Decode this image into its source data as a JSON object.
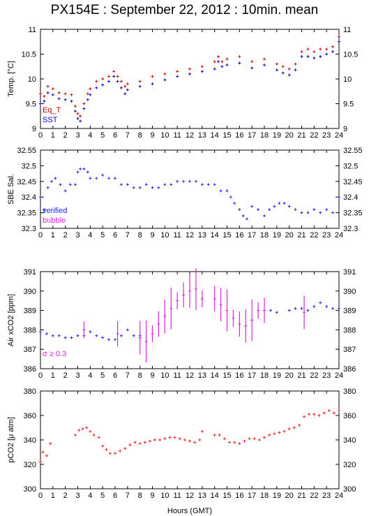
{
  "title": "PX154E : September 22, 2012 : 10min. mean",
  "xlabel": "Hours (GMT)",
  "colors": {
    "eq_t": "#cc0000",
    "sst": "#0000cc",
    "verified": "#2222ee",
    "bubble": "#dd22dd",
    "pco2": "#ee2222"
  },
  "legend": {
    "temp": [
      "Eq_T",
      "SST"
    ],
    "sal": [
      "verified",
      "bubble"
    ],
    "air": "σ ≥ 0.3"
  },
  "chart_data": [
    {
      "type": "scatter",
      "panel": "temperature",
      "ylabel": "Temp. [°C]",
      "xlim": [
        0,
        24
      ],
      "ylim": [
        9,
        11
      ],
      "x_ticks": [
        0,
        1,
        2,
        3,
        4,
        5,
        6,
        7,
        8,
        9,
        10,
        11,
        12,
        13,
        14,
        15,
        16,
        17,
        18,
        19,
        20,
        21,
        22,
        23,
        24
      ],
      "y_ticks": [
        "9",
        "9.5",
        "10",
        "10.5",
        "11"
      ],
      "series": [
        {
          "name": "Eq_T",
          "x": [
            0,
            0.3,
            0.6,
            1,
            1.5,
            2,
            2.5,
            2.8,
            3,
            3.2,
            3.5,
            3.8,
            4,
            4.5,
            5,
            5.5,
            5.9,
            6.2,
            6.5,
            6.8,
            7,
            8,
            9,
            10,
            11,
            12,
            13,
            14,
            14.3,
            14.6,
            15,
            16,
            17,
            18,
            19,
            19.5,
            20,
            20.5,
            21,
            21.5,
            22,
            22.5,
            23,
            23.5,
            24
          ],
          "y": [
            9.7,
            9.65,
            9.85,
            9.8,
            9.72,
            9.7,
            9.68,
            9.45,
            9.3,
            9.25,
            9.5,
            9.7,
            9.8,
            9.95,
            10.0,
            10.05,
            10.15,
            10.05,
            9.95,
            9.85,
            9.9,
            9.95,
            10.05,
            10.1,
            10.15,
            10.2,
            10.25,
            10.35,
            10.45,
            10.35,
            10.4,
            10.45,
            10.35,
            10.4,
            10.3,
            10.25,
            10.2,
            10.3,
            10.55,
            10.6,
            10.55,
            10.6,
            10.6,
            10.65,
            10.85
          ]
        },
        {
          "name": "SST",
          "x": [
            0,
            0.3,
            0.6,
            1,
            1.5,
            2,
            2.5,
            2.8,
            3,
            3.2,
            3.5,
            3.8,
            4,
            4.5,
            5,
            5.5,
            5.9,
            6.2,
            6.5,
            6.8,
            7,
            8,
            9,
            10,
            11,
            12,
            13,
            14,
            14.3,
            14.6,
            15,
            16,
            17,
            18,
            19,
            19.5,
            20,
            20.5,
            21,
            21.5,
            22,
            22.5,
            23,
            23.5,
            24
          ],
          "y": [
            9.5,
            9.55,
            9.72,
            9.68,
            9.6,
            9.58,
            9.55,
            9.35,
            9.2,
            9.15,
            9.4,
            9.58,
            9.68,
            9.82,
            9.88,
            9.95,
            10.05,
            9.95,
            9.82,
            9.7,
            9.78,
            9.85,
            9.9,
            9.98,
            10.05,
            10.1,
            10.15,
            10.2,
            10.35,
            10.25,
            10.28,
            10.32,
            10.22,
            10.28,
            10.18,
            10.12,
            10.08,
            10.18,
            10.45,
            10.45,
            10.42,
            10.45,
            10.5,
            10.55,
            10.75
          ]
        }
      ]
    },
    {
      "type": "scatter",
      "panel": "salinity",
      "ylabel": "SBE Sal.",
      "xlim": [
        0,
        24
      ],
      "ylim": [
        32.3,
        32.55
      ],
      "x_ticks": [
        0,
        1,
        2,
        3,
        4,
        5,
        6,
        7,
        8,
        9,
        10,
        11,
        12,
        13,
        14,
        15,
        16,
        17,
        18,
        19,
        20,
        21,
        22,
        23,
        24
      ],
      "y_ticks": [
        "32.3",
        "32.35",
        "32.4",
        "32.45",
        "32.5",
        "32.55"
      ],
      "series": [
        {
          "name": "verified",
          "x": [
            0,
            0.3,
            0.6,
            0.9,
            1.2,
            1.6,
            2,
            2.4,
            2.8,
            3,
            3.2,
            3.5,
            3.8,
            4,
            4.5,
            5,
            5.5,
            6,
            6.5,
            7,
            7.5,
            8,
            8.5,
            9,
            9.5,
            10,
            10.5,
            11,
            11.5,
            12,
            12.5,
            13,
            13.5,
            14,
            14.5,
            15,
            15.3,
            15.6,
            16,
            16.3,
            16.6,
            17,
            17.5,
            18,
            18.4,
            18.8,
            19.2,
            19.6,
            20,
            20.5,
            21,
            21.5,
            22,
            22.5,
            23,
            23.5,
            24
          ],
          "y": [
            32.4,
            32.36,
            32.43,
            32.45,
            32.46,
            32.44,
            32.42,
            32.44,
            32.44,
            32.48,
            32.49,
            32.49,
            32.48,
            32.46,
            32.46,
            32.47,
            32.46,
            32.46,
            32.44,
            32.44,
            32.43,
            32.43,
            32.44,
            32.43,
            32.43,
            32.44,
            32.44,
            32.45,
            32.45,
            32.45,
            32.45,
            32.44,
            32.44,
            32.44,
            32.42,
            32.42,
            32.4,
            32.38,
            32.36,
            32.34,
            32.33,
            32.37,
            32.36,
            32.34,
            32.36,
            32.37,
            32.38,
            32.38,
            32.37,
            32.36,
            32.35,
            32.35,
            32.36,
            32.35,
            32.36,
            32.35,
            32.4
          ]
        },
        {
          "name": "bubble",
          "x": [],
          "y": []
        }
      ]
    },
    {
      "type": "scatter",
      "panel": "air_xco2",
      "ylabel": "Air xCO2 [ppm]",
      "xlim": [
        0,
        24
      ],
      "ylim": [
        386,
        391
      ],
      "x_ticks": [
        0,
        1,
        2,
        3,
        4,
        5,
        6,
        7,
        8,
        9,
        10,
        11,
        12,
        13,
        14,
        15,
        16,
        17,
        18,
        19,
        20,
        21,
        22,
        23,
        24
      ],
      "y_ticks": [
        "386",
        "387",
        "388",
        "389",
        "390",
        "391"
      ],
      "series": [
        {
          "name": "verified",
          "x": [
            0,
            0.5,
            1,
            1.5,
            2,
            2.5,
            3,
            3.5,
            4,
            4.5,
            5,
            5.5,
            6,
            6.5,
            7,
            7.5,
            8,
            18.5,
            19,
            20,
            20.5,
            21,
            21.5,
            22,
            22.5,
            23,
            23.5,
            24
          ],
          "y": [
            387.9,
            387.8,
            387.7,
            387.7,
            387.6,
            387.6,
            387.7,
            387.7,
            387.9,
            387.7,
            387.6,
            387.5,
            387.5,
            387.7,
            388.0,
            387.7,
            387.7,
            389.0,
            388.9,
            389.0,
            389.1,
            389.1,
            389.0,
            389.2,
            389.4,
            389.2,
            389.1,
            389.1
          ]
        },
        {
          "name": "σ ≥ 0.3",
          "x": [
            3.5,
            6.2,
            8,
            8.5,
            9,
            9.5,
            10,
            10.5,
            11,
            11.5,
            12,
            12.5,
            13,
            14,
            14.5,
            15,
            15.5,
            16,
            16.5,
            17,
            17.5,
            18,
            21.2
          ],
          "y": [
            388.0,
            387.8,
            387.6,
            387.4,
            387.8,
            388.3,
            388.7,
            389.1,
            389.5,
            389.8,
            390.0,
            390.1,
            389.6,
            389.6,
            389.3,
            389.0,
            388.6,
            388.3,
            388.2,
            388.5,
            389.0,
            389.0,
            388.9
          ]
        }
      ]
    },
    {
      "type": "scatter",
      "panel": "pco2",
      "ylabel": "pCO2 [μ atm]",
      "xlim": [
        0,
        24
      ],
      "ylim": [
        300,
        380
      ],
      "x_ticks": [
        0,
        1,
        2,
        3,
        4,
        5,
        6,
        7,
        8,
        9,
        10,
        11,
        12,
        13,
        14,
        15,
        16,
        17,
        18,
        19,
        20,
        21,
        22,
        23,
        24
      ],
      "y_ticks": [
        "300",
        "320",
        "340",
        "360",
        "380"
      ],
      "series": [
        {
          "name": "pCO2",
          "x": [
            0,
            0.2,
            0.5,
            0.8,
            2.8,
            3.1,
            3.4,
            3.7,
            4,
            4.3,
            4.7,
            5,
            5.3,
            5.6,
            6,
            6.4,
            6.8,
            7.2,
            7.6,
            8,
            8.4,
            8.8,
            9.2,
            9.6,
            10,
            10.4,
            10.8,
            11.2,
            11.6,
            12,
            12.4,
            12.8,
            13,
            14,
            14.4,
            14.8,
            15.2,
            15.6,
            16,
            16.4,
            16.8,
            17.2,
            17.6,
            18,
            18.4,
            18.8,
            19.2,
            19.6,
            20,
            20.4,
            20.8,
            21.2,
            21.6,
            22,
            22.4,
            22.8,
            23.2,
            23.6,
            24
          ],
          "y": [
            322,
            330,
            327,
            337,
            344,
            348,
            349,
            350,
            347,
            344,
            342,
            335,
            332,
            329,
            329,
            331,
            333,
            336,
            338,
            337,
            338,
            339,
            340,
            340,
            341,
            342,
            342,
            341,
            340,
            339,
            338,
            340,
            347,
            344,
            344,
            341,
            338,
            338,
            337,
            339,
            341,
            341,
            340,
            342,
            344,
            345,
            346,
            347,
            349,
            350,
            352,
            359,
            361,
            361,
            360,
            362,
            364,
            362,
            364
          ]
        }
      ]
    }
  ]
}
